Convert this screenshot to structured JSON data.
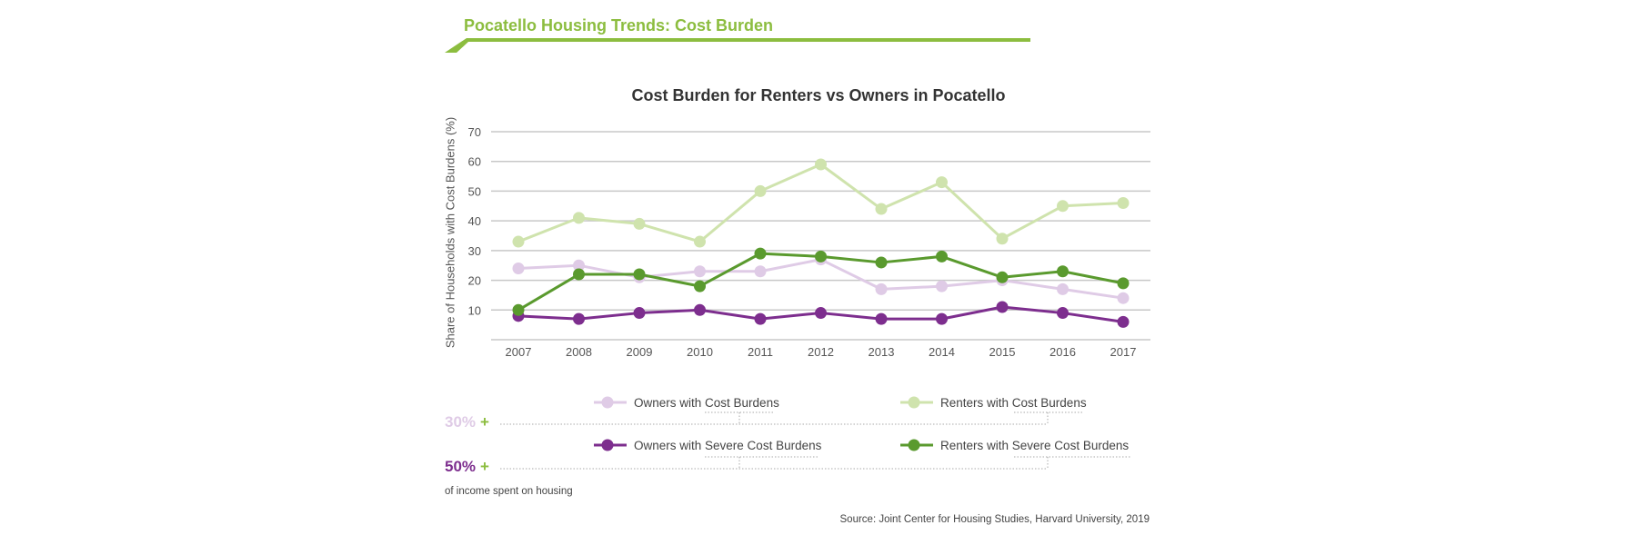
{
  "header": {
    "title": "Pocatello Housing Trends: Cost Burden",
    "accent_color": "#8cbd3f"
  },
  "chart_data": {
    "type": "line",
    "title": "Cost Burden for Renters vs Owners in Pocatello",
    "xlabel": "",
    "ylabel": "Share of Households with Cost Burdens (%)",
    "categories": [
      "2007",
      "2008",
      "2009",
      "2010",
      "2011",
      "2012",
      "2013",
      "2014",
      "2015",
      "2016",
      "2017"
    ],
    "yticks": [
      10,
      20,
      30,
      40,
      50,
      60,
      70
    ],
    "ylim": [
      0,
      70
    ],
    "grid": "horizontal",
    "legend_position": "bottom",
    "series": [
      {
        "name": "Owners with Cost Burdens",
        "color": "#dfcbe6",
        "values": [
          24,
          25,
          21,
          23,
          23,
          27,
          17,
          18,
          20,
          17,
          14
        ]
      },
      {
        "name": "Renters with Cost Burdens",
        "color": "#cfe3ad",
        "values": [
          33,
          41,
          39,
          33,
          50,
          59,
          44,
          53,
          34,
          45,
          46
        ]
      },
      {
        "name": "Owners with Severe Cost Burdens",
        "color": "#7d2e8e",
        "values": [
          8,
          7,
          9,
          10,
          7,
          9,
          7,
          7,
          11,
          9,
          6
        ]
      },
      {
        "name": "Renters with Severe Cost Burdens",
        "color": "#5a9a2e",
        "values": [
          10,
          22,
          22,
          18,
          29,
          28,
          26,
          28,
          21,
          23,
          19
        ]
      }
    ]
  },
  "legend": {
    "items": [
      {
        "prefix": "Owners with ",
        "emph": "Cost Burdens"
      },
      {
        "prefix": "Renters with ",
        "emph": "Cost Burdens"
      },
      {
        "prefix": "Owners with ",
        "emph": "Severe Cost Burdens"
      },
      {
        "prefix": "Renters with ",
        "emph": "Severe Cost Burdens"
      }
    ],
    "thresholds": [
      {
        "value": "30%",
        "plus": "+",
        "color": "#dfcbe6"
      },
      {
        "value": "50%",
        "plus": "+",
        "color": "#7d2e8e"
      }
    ],
    "footnote": "of income spent on housing"
  },
  "source": "Source: Joint Center for Housing Studies, Harvard University, 2019"
}
